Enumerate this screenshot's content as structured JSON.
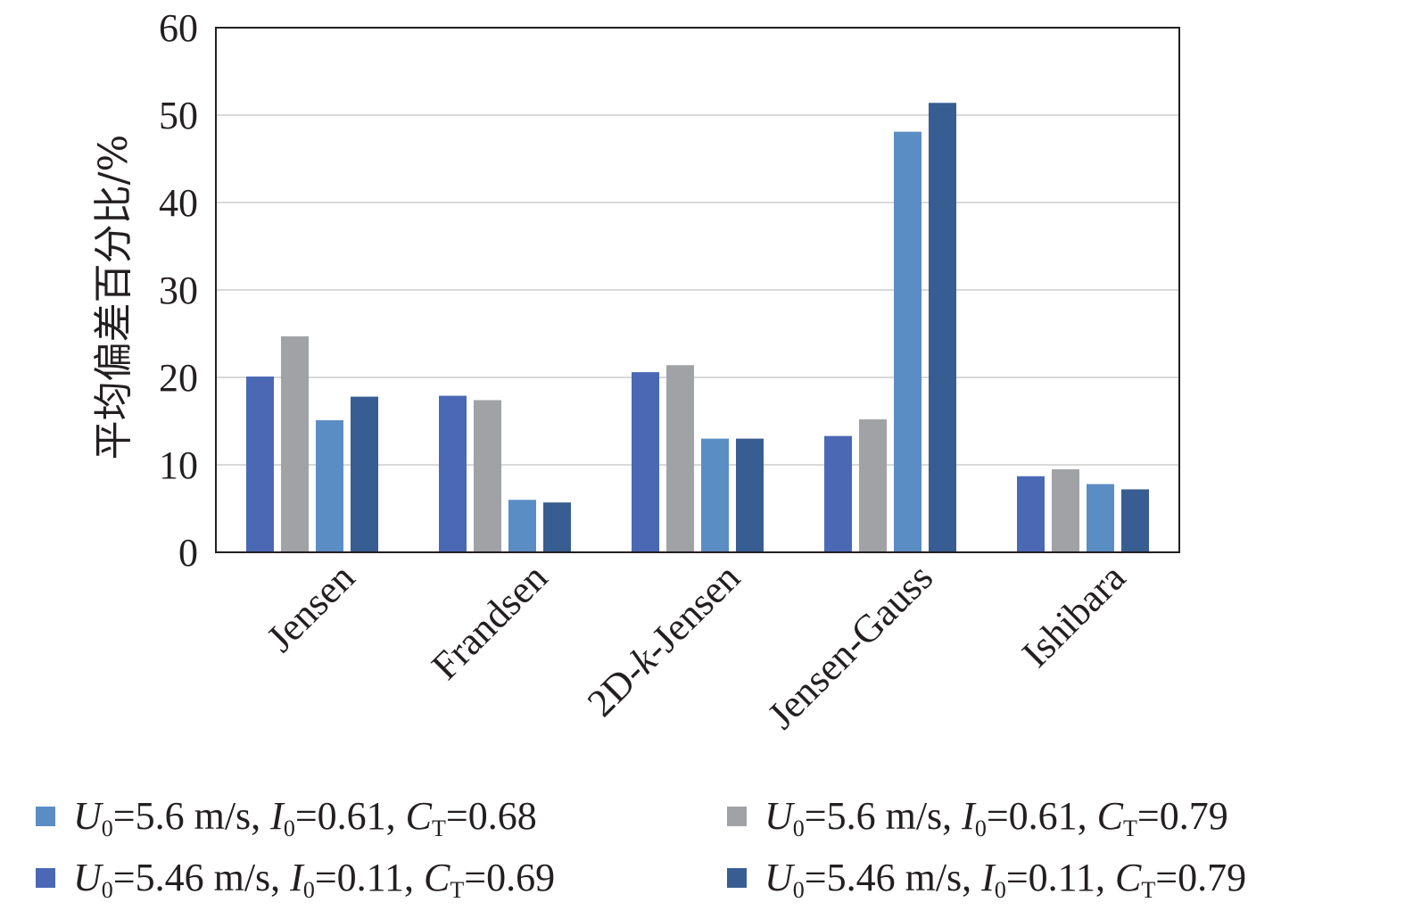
{
  "chart_data": {
    "type": "bar",
    "ylabel": "平均偏差百分比/%",
    "xlabel": "",
    "ylim": [
      0,
      60
    ],
    "yticks": [
      0,
      10,
      20,
      30,
      40,
      50,
      60
    ],
    "grid": true,
    "legend_position": "bottom",
    "categories": [
      "Jensen",
      "Frandsen",
      "2D-k-Jensen",
      "Jensen-Gauss",
      "Ishibara"
    ],
    "series": [
      {
        "name": "U0=5.46 m/s, I0=0.11, CT=0.69",
        "color": "#4a68b4",
        "values": [
          20.1,
          17.9,
          20.6,
          13.3,
          8.7
        ]
      },
      {
        "name": "U0=5.6 m/s, I0=0.61, CT=0.79",
        "color": "#a0a2a6",
        "values": [
          24.7,
          17.4,
          21.4,
          15.2,
          9.5
        ]
      },
      {
        "name": "U0=5.6 m/s, I0=0.61, CT=0.68",
        "color": "#5b8dc5",
        "values": [
          15.1,
          6.0,
          13.0,
          48.1,
          7.8
        ]
      },
      {
        "name": "U0=5.46 m/s, I0=0.11, CT=0.79",
        "color": "#385d92",
        "values": [
          17.8,
          5.7,
          13.0,
          51.4,
          7.2
        ]
      }
    ]
  },
  "legend": [
    {
      "u": "U",
      "u_sub": "0",
      "u_val": "=5.6 m/s, ",
      "i": "I",
      "i_sub": "0",
      "i_val": "=0.61, ",
      "c": "C",
      "c_sub": "T",
      "c_val": "=0.68",
      "color": "#5b8dc5"
    },
    {
      "u": "U",
      "u_sub": "0",
      "u_val": "=5.6 m/s, ",
      "i": "I",
      "i_sub": "0",
      "i_val": "=0.61, ",
      "c": "C",
      "c_sub": "T",
      "c_val": "=0.79",
      "color": "#a0a2a6"
    },
    {
      "u": "U",
      "u_sub": "0",
      "u_val": "=5.46 m/s, ",
      "i": "I",
      "i_sub": "0",
      "i_val": "=0.11, ",
      "c": "C",
      "c_sub": "T",
      "c_val": "=0.69",
      "color": "#4a68b4"
    },
    {
      "u": "U",
      "u_sub": "0",
      "u_val": "=5.46 m/s, ",
      "i": "I",
      "i_sub": "0",
      "i_val": "=0.11, ",
      "c": "C",
      "c_sub": "T",
      "c_val": "=0.79",
      "color": "#385d92"
    }
  ]
}
